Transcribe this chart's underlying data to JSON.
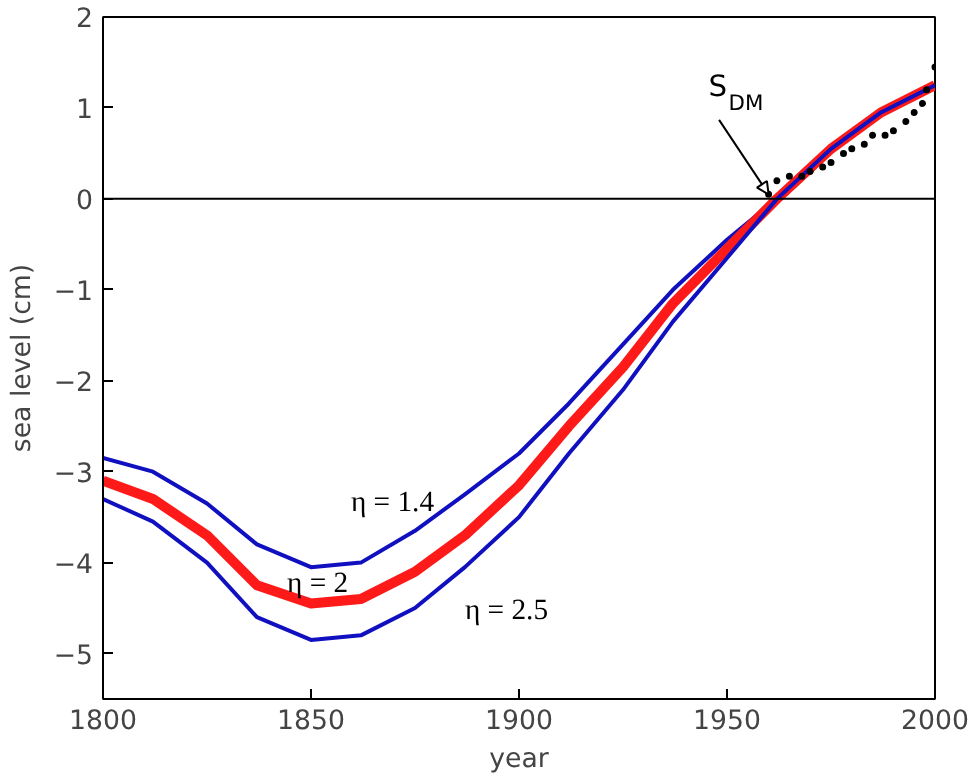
{
  "chart_data": {
    "type": "line",
    "xlabel": "year",
    "ylabel": "sea level (cm)",
    "xlim": [
      1800,
      2000
    ],
    "ylim": [
      -5.5,
      2
    ],
    "xticks": [
      1800,
      1850,
      1900,
      1950,
      2000
    ],
    "yticks": [
      -5,
      -4,
      -3,
      -2,
      -1,
      0,
      1,
      2
    ],
    "grid": false,
    "marker": "none",
    "line_style": "solid",
    "x": [
      1800,
      1812,
      1825,
      1837,
      1850,
      1862,
      1875,
      1887,
      1900,
      1912,
      1925,
      1937,
      1950,
      1962,
      1975,
      1987,
      2000
    ],
    "series": [
      {
        "name": "η = 1.4",
        "color": "#1010c0",
        "values": [
          -2.85,
          -3.0,
          -3.35,
          -3.8,
          -4.05,
          -4.0,
          -3.65,
          -3.25,
          -2.8,
          -2.25,
          -1.6,
          -1.0,
          -0.45,
          0.0,
          0.55,
          0.95,
          1.25
        ]
      },
      {
        "name": "η = 2",
        "color": "#ff1a1a",
        "values": [
          -3.1,
          -3.3,
          -3.7,
          -4.25,
          -4.45,
          -4.4,
          -4.1,
          -3.7,
          -3.15,
          -2.5,
          -1.85,
          -1.15,
          -0.55,
          0.0,
          0.55,
          0.95,
          1.25
        ]
      },
      {
        "name": "η = 2.5",
        "color": "#1010c0",
        "values": [
          -3.3,
          -3.55,
          -4.0,
          -4.6,
          -4.85,
          -4.8,
          -4.5,
          -4.05,
          -3.5,
          -2.8,
          -2.1,
          -1.35,
          -0.65,
          0.0,
          0.55,
          0.95,
          1.25
        ]
      },
      {
        "name": "S$_{DM}$",
        "type": "scatter",
        "marker": "circle",
        "color": "#000000",
        "x": [
          1960,
          1962,
          1965,
          1968,
          1970,
          1973,
          1975,
          1978,
          1980,
          1983,
          1985,
          1988,
          1990,
          1993,
          1995,
          1997,
          1998,
          2000
        ],
        "values": [
          0.05,
          0.2,
          0.25,
          0.25,
          0.3,
          0.35,
          0.4,
          0.5,
          0.55,
          0.6,
          0.7,
          0.7,
          0.75,
          0.85,
          0.95,
          1.05,
          1.2,
          1.45
        ]
      }
    ],
    "ref_lines": [
      {
        "axis": "y",
        "value": 0,
        "color": "#000000"
      }
    ]
  }
}
